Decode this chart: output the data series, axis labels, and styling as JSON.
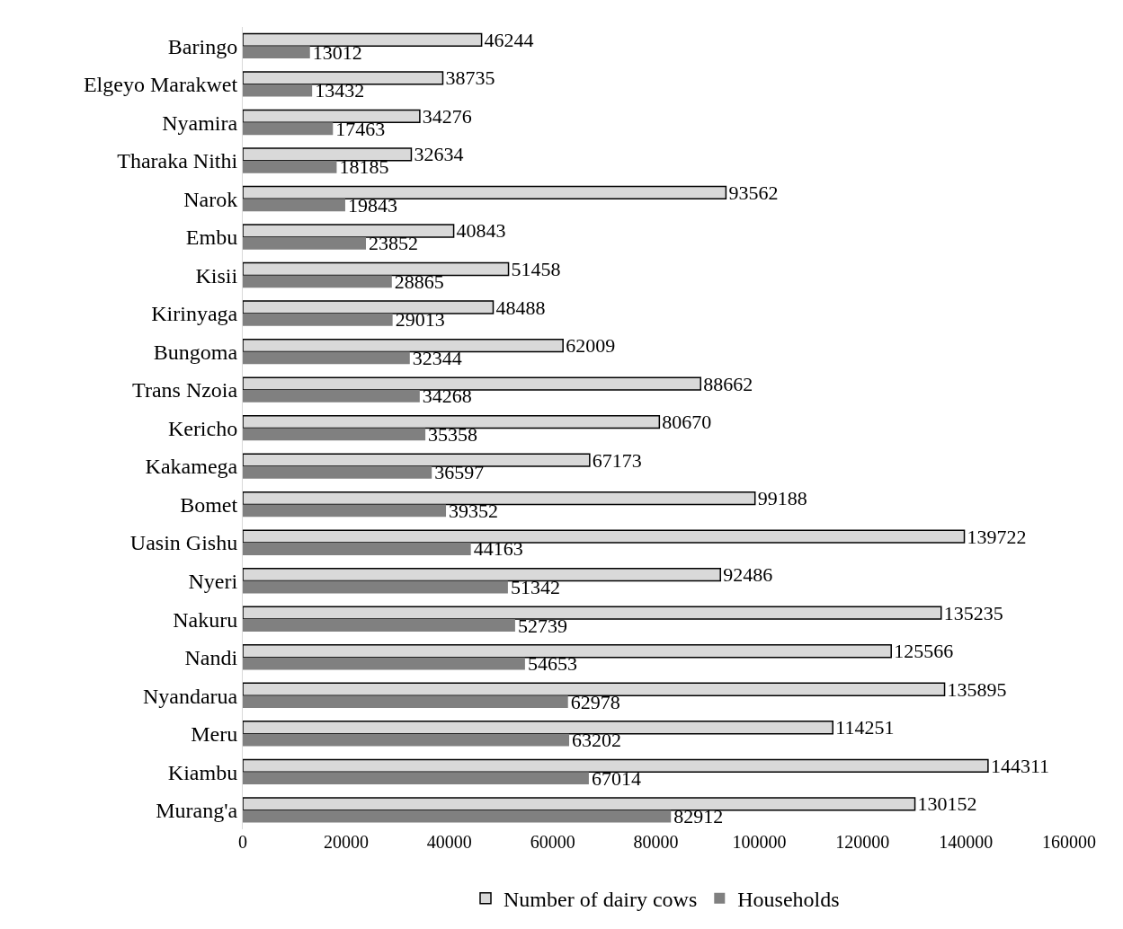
{
  "chart_data": {
    "type": "bar",
    "orientation": "horizontal",
    "data_labels": true,
    "legend": "bottom",
    "grid": false,
    "categories": [
      "Baringo",
      "Elgeyo Marakwet",
      "Nyamira",
      "Tharaka Nithi",
      "Narok",
      "Embu",
      "Kisii",
      "Kirinyaga",
      "Bungoma",
      "Trans Nzoia",
      "Kericho",
      "Kakamega",
      "Bomet",
      "Uasin Gishu",
      "Nyeri",
      "Nakuru",
      "Nandi",
      "Nyandarua",
      "Meru",
      "Kiambu",
      "Murang'a"
    ],
    "series": [
      {
        "name": "Number of dairy cows",
        "color": "#d9d9d9",
        "values": [
          46244,
          38735,
          34276,
          32634,
          93562,
          40843,
          51458,
          48488,
          62009,
          88662,
          80670,
          67173,
          99188,
          139722,
          92486,
          135235,
          125566,
          135895,
          114251,
          144311,
          130152
        ]
      },
      {
        "name": "Households",
        "color": "#808080",
        "values": [
          13012,
          13432,
          17463,
          18185,
          19843,
          23852,
          28865,
          29013,
          32344,
          34268,
          35358,
          36597,
          39352,
          44163,
          51342,
          52739,
          54653,
          62978,
          63202,
          67014,
          82912
        ]
      }
    ],
    "xlim": [
      0,
      160000
    ],
    "xticks": [
      0,
      20000,
      40000,
      60000,
      80000,
      100000,
      120000,
      140000,
      160000
    ]
  }
}
